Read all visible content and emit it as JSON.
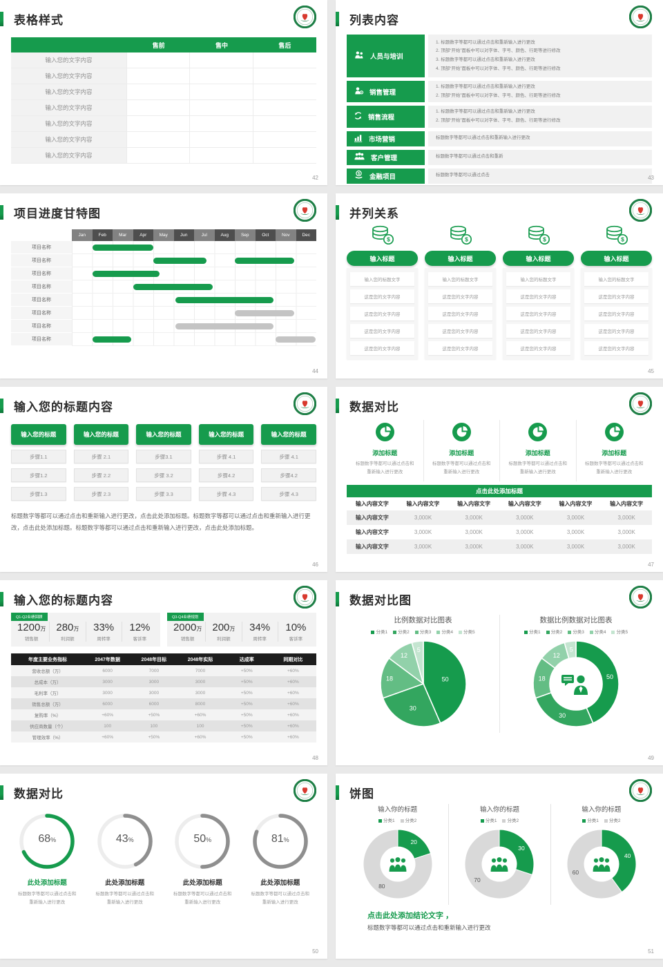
{
  "theme": {
    "green": "#169b4d",
    "green_dark": "#0c6f36",
    "gray_bar": "#c4c4c4",
    "ring_gray": "#8f8f8f",
    "logo_red": "#d8392e",
    "pie_colors": [
      "#169b4d",
      "#33a65f",
      "#63bd84",
      "#92d1aa",
      "#c4e5d0"
    ],
    "donut_gray": "#d9d9d9"
  },
  "slides": [
    {
      "id": "table-style",
      "page": "42",
      "title": "表格样式",
      "table": {
        "header": [
          "",
          "售前",
          "售中",
          "售后"
        ],
        "row_label": "输入您的文字内容",
        "row_count": 7
      }
    },
    {
      "id": "list-content",
      "page": "43",
      "title": "列表内容",
      "items": [
        {
          "icon": "training-people-icon",
          "label": "人员与培训",
          "lines": [
            "1.    标题数字等都可以通过点击和重新输入进行更改",
            "2.    顶部“开始”面板中可以对字体、字号、颜色、行距等进行修改",
            "3.    标题数字等都可以通过点击和重新输入进行更改",
            "4.    顶部“开始”面板中可以对字体、字号、颜色、行距等进行修改"
          ]
        },
        {
          "icon": "sales-manage-icon",
          "label": "销售管理",
          "lines": [
            "1.    标题数字等都可以通过点击和重新输入进行更改",
            "2.    顶部“开始”面板中可以对字体、字号、颜色、行距等进行修改"
          ]
        },
        {
          "icon": "sales-process-icon",
          "label": "销售流程",
          "lines": [
            "1.    标题数字等都可以通过点击和重新输入进行更改",
            "2.    顶部“开始”面板中可以对字体、字号、颜色、行距等进行修改"
          ]
        },
        {
          "icon": "marketing-icon",
          "label": "市场营销",
          "lines": [
            "标题数字等都可以通过点击和重新输入进行更改"
          ]
        },
        {
          "icon": "customer-icon",
          "label": "客户管理",
          "lines": [
            "标题数字等都可以通过点击和重新"
          ]
        },
        {
          "icon": "finance-icon",
          "label": "金融项目",
          "lines": [
            "标题数字等都可以通过点击"
          ]
        }
      ]
    },
    {
      "id": "gantt",
      "page": "44",
      "title": "项目进度甘特图",
      "months": [
        "Jan",
        "Feb",
        "Mar",
        "Apr",
        "May",
        "Jun",
        "Jul",
        "Aug",
        "Sep",
        "Oct",
        "Nov",
        "Dec"
      ],
      "row_label": "项目名称",
      "bars": [
        [
          {
            "start": 1.0,
            "end": 4.0,
            "color": "green"
          }
        ],
        [
          {
            "start": 4.0,
            "end": 6.6,
            "color": "green"
          },
          {
            "start": 8.0,
            "end": 10.9,
            "color": "green"
          }
        ],
        [
          {
            "start": 1.0,
            "end": 4.3,
            "color": "green"
          }
        ],
        [
          {
            "start": 3.0,
            "end": 6.9,
            "color": "green"
          }
        ],
        [
          {
            "start": 5.1,
            "end": 9.9,
            "color": "green"
          }
        ],
        [
          {
            "start": 8.0,
            "end": 10.9,
            "color": "gray"
          }
        ],
        [
          {
            "start": 5.1,
            "end": 9.9,
            "color": "gray"
          }
        ],
        [
          {
            "start": 1.0,
            "end": 2.9,
            "color": "green"
          },
          {
            "start": 10.0,
            "end": 11.95,
            "color": "gray"
          }
        ]
      ]
    },
    {
      "id": "parallel",
      "page": "45",
      "title": "并列关系",
      "columns": [
        {
          "icon": "coins-icon",
          "title": "输入标题",
          "rows": [
            "输入您的标题文字",
            "这是您的文字内容",
            "这是您的文字内容",
            "这是您的文字内容",
            "这是您的文字内容"
          ]
        },
        {
          "icon": "coins-icon",
          "title": "输入标题",
          "rows": [
            "输入您的标题文字",
            "这是您的文字内容",
            "这是您的文字内容",
            "这是您的文字内容",
            "这是您的文字内容"
          ]
        },
        {
          "icon": "coins-icon",
          "title": "输入标题",
          "rows": [
            "输入您的标题文字",
            "这是您的文字内容",
            "这是您的文字内容",
            "这是您的文字内容",
            "这是您的文字内容"
          ]
        },
        {
          "icon": "coins-icon",
          "title": "输入标题",
          "rows": [
            "输入您的标题文字",
            "这是您的文字内容",
            "这是您的文字内容",
            "这是您的文字内容",
            "这是您的文字内容"
          ]
        }
      ]
    },
    {
      "id": "steps",
      "page": "46",
      "title": "输入您的标题内容",
      "columns": [
        {
          "title": "输入您的标题",
          "steps": [
            "步骤1.1",
            "步骤1.2",
            "步骤1.3"
          ]
        },
        {
          "title": "输入您的标题",
          "steps": [
            "步骤 2.1",
            "步骤 2.2",
            "步骤 2.3"
          ]
        },
        {
          "title": "输入您的标题",
          "steps": [
            "步骤3.1",
            "步骤 3.2",
            "步骤 3.3"
          ]
        },
        {
          "title": "输入您的标题",
          "steps": [
            "步骤 4.1",
            "步骤4.2",
            "步骤 4.3"
          ]
        },
        {
          "title": "输入您的标题",
          "steps": [
            "步骤 4.1",
            "步骤4.2",
            "步骤 4.3"
          ]
        }
      ],
      "paragraph": "标题数字等都可以通过点击和重新输入进行更改，点击此处添加标题。标题数字等都可以通过点击和重新输入进行更改，点击此处添加标题。标题数字等都可以通过点击和重新输入进行更改，点击此处添加标题。"
    },
    {
      "id": "data-compare",
      "page": "47",
      "title": "数据对比",
      "features": [
        {
          "icon": "pie-icon",
          "title": "添加标题",
          "caption": "标题数字等都可以通过点击和重新输入进行更改"
        },
        {
          "icon": "pie-icon",
          "title": "添加标题",
          "caption": "标题数字等都可以通过点击和重新输入进行更改"
        },
        {
          "icon": "pie-icon",
          "title": "添加标题",
          "caption": "标题数字等都可以通过点击和重新输入进行更改"
        },
        {
          "icon": "pie-icon",
          "title": "添加标题",
          "caption": "标题数字等都可以通过点击和重新输入进行更改"
        }
      ],
      "band_title": "点击此处添加标题",
      "table": {
        "header": [
          "输入内容文字",
          "输入内容文字",
          "输入内容文字",
          "输入内容文字",
          "输入内容文字",
          "输入内容文字"
        ],
        "rows": [
          [
            "输入内容文字",
            "3,000K",
            "3,000K",
            "3,000K",
            "3,000K",
            "3,000K"
          ],
          [
            "输入内容文字",
            "3,000K",
            "3,000K",
            "3,000K",
            "3,000K",
            "3,000K"
          ],
          [
            "输入内容文字",
            "3,000K",
            "3,000K",
            "3,000K",
            "3,000K",
            "3,000K"
          ]
        ]
      }
    },
    {
      "id": "stats-table",
      "page": "48",
      "title": "输入您的标题内容",
      "panels": [
        {
          "tag": "Q1-Q2业绩回顾",
          "stats": [
            {
              "value": "1200",
              "unit": "万",
              "label": "销售额"
            },
            {
              "value": "280",
              "unit": "万",
              "label": "利润额"
            },
            {
              "value": "33%",
              "unit": "",
              "label": "周转率"
            },
            {
              "value": "12%",
              "unit": "",
              "label": "客诉率"
            }
          ]
        },
        {
          "tag": "Q3-Q4业绩规划",
          "stats": [
            {
              "value": "2000",
              "unit": "万",
              "label": "销售额"
            },
            {
              "value": "200",
              "unit": "万",
              "label": "利润额"
            },
            {
              "value": "34%",
              "unit": "",
              "label": "周转率"
            },
            {
              "value": "10%",
              "unit": "",
              "label": "客诉率"
            }
          ]
        }
      ],
      "table": {
        "header": [
          "年度主要业务指标",
          "2047年数据",
          "2048年目标",
          "2048年实际",
          "达成率",
          "同期对比"
        ],
        "rows": [
          [
            "营收总额（万）",
            "6000",
            "7000",
            "7000",
            "+50%",
            "+60%"
          ],
          [
            "总成本（万）",
            "3000",
            "3000",
            "3000",
            "+50%",
            "+60%"
          ],
          [
            "毛利率（万）",
            "3000",
            "3000",
            "3000",
            "+50%",
            "+60%"
          ],
          [
            "销售总额（万）",
            "6000",
            "6000",
            "8000",
            "+50%",
            "+60%"
          ],
          [
            "复购率（%）",
            "+60%",
            "+50%",
            "+60%",
            "+50%",
            "+60%"
          ],
          [
            "供应商数量（个）",
            "100",
            "100",
            "100",
            "+50%",
            "+60%"
          ],
          [
            "管理效率（%）",
            "+60%",
            "+50%",
            "+60%",
            "+50%",
            "+60%"
          ]
        ]
      }
    },
    {
      "id": "compare-charts",
      "page": "49",
      "title": "数据对比图",
      "chart_data": [
        {
          "type": "pie",
          "title": "比例数据对比图表",
          "legend": [
            "分类1",
            "分类2",
            "分类3",
            "分类4",
            "分类5"
          ],
          "values": [
            50,
            30,
            18,
            12,
            5
          ]
        },
        {
          "type": "donut",
          "title": "数据比例数据对比图表",
          "legend": [
            "分类1",
            "分类2",
            "分类3",
            "分类4",
            "分类5"
          ],
          "values": [
            50,
            30,
            18,
            12,
            5
          ],
          "center_icon": "businessman-icon"
        }
      ]
    },
    {
      "id": "donut-percents",
      "page": "50",
      "title": "数据对比",
      "items": [
        {
          "percent": 68,
          "color": "green",
          "title": "此处添加标题",
          "caption": "标题数字等都可以通过点击和重新输入进行更改"
        },
        {
          "percent": 43,
          "color": "gray",
          "title": "此处添加标题",
          "caption": "标题数字等都可以通过点击和重新输入进行更改"
        },
        {
          "percent": 50,
          "color": "gray",
          "title": "此处添加标题",
          "caption": "标题数字等都可以通过点击和重新输入进行更改"
        },
        {
          "percent": 81,
          "color": "gray",
          "title": "此处添加标题",
          "caption": "标题数字等都可以通过点击和重新输入进行更改"
        }
      ]
    },
    {
      "id": "pie-charts",
      "page": "51",
      "title": "饼图",
      "chart_data": [
        {
          "type": "donut",
          "title": "输入你的标题",
          "legend": [
            "分类1",
            "分类2"
          ],
          "values": [
            20,
            80
          ],
          "center_icon": "people-group-icon"
        },
        {
          "type": "donut",
          "title": "输入你的标题",
          "legend": [
            "分类1",
            "分类2"
          ],
          "values": [
            30,
            70
          ],
          "center_icon": "people-group-icon"
        },
        {
          "type": "donut",
          "title": "输入你的标题",
          "legend": [
            "分类1",
            "分类2"
          ],
          "values": [
            40,
            60
          ],
          "center_icon": "people-group-icon"
        }
      ],
      "conclusion_title": "点击此处添加结论文字 ，",
      "conclusion_text": "标题数字等都可以通过点击和重新输入进行更改"
    }
  ]
}
